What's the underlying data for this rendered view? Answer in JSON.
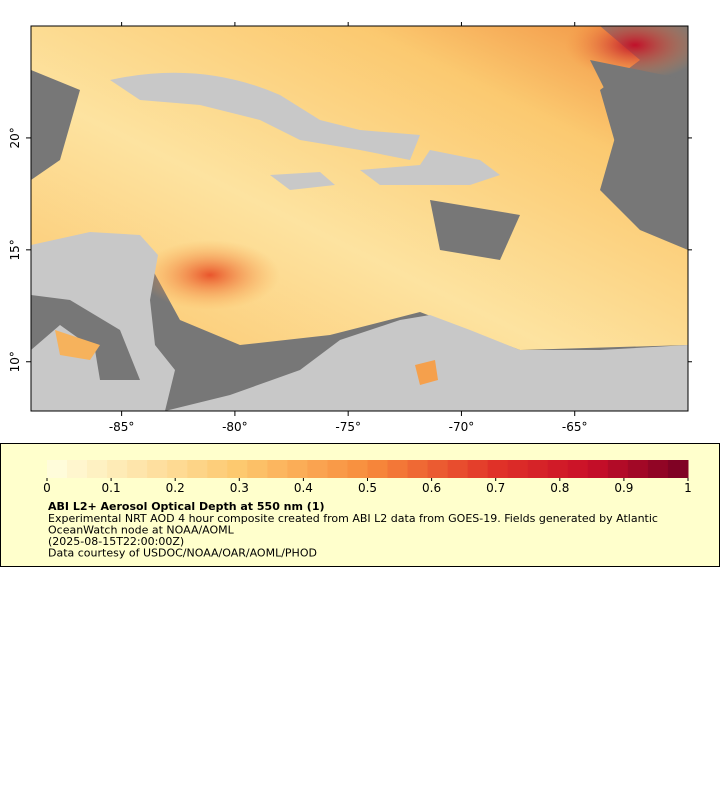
{
  "map": {
    "xlim": [
      -89,
      -60
    ],
    "ylim": [
      7.8,
      25
    ],
    "xticks": [
      {
        "value": -85,
        "label": "-85°"
      },
      {
        "value": -80,
        "label": "-80°"
      },
      {
        "value": -75,
        "label": "-75°"
      },
      {
        "value": -70,
        "label": "-70°"
      },
      {
        "value": -65,
        "label": "-65°"
      }
    ],
    "yticks": [
      {
        "value": 10,
        "label": "10°"
      },
      {
        "value": 15,
        "label": "15°"
      },
      {
        "value": 20,
        "label": "20°"
      }
    ]
  },
  "colorbar": {
    "lim": [
      0,
      1
    ],
    "ticks": [
      0,
      0.1,
      0.2,
      0.3,
      0.4,
      0.5,
      0.6,
      0.7,
      0.8,
      0.9,
      1
    ]
  },
  "legend": {
    "title": "ABI L2+ Aerosol Optical Depth at 550 nm (1)",
    "lines": [
      "Experimental NRT AOD 4 hour composite created from ABI L2 data from GOES-19. Fields generated by Atlantic",
      "OceanWatch node at NOAA/AOML",
      "(2025-08-15T22:00:00Z)",
      "Data courtesy of USDOC/NOAA/OAR/AOML/PHOD"
    ]
  }
}
